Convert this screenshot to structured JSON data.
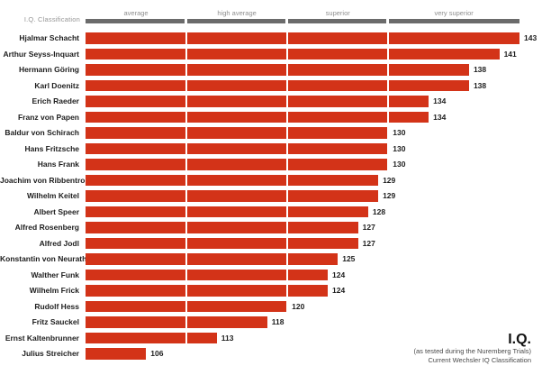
{
  "header": {
    "axis_label": "I.Q. Classification",
    "track_color": "#6b6b6b",
    "label_color": "#8f8f8f",
    "classifications": [
      {
        "label": "average",
        "from": 100,
        "to": 110
      },
      {
        "label": "high average",
        "from": 110,
        "to": 120
      },
      {
        "label": "superior",
        "from": 120,
        "to": 130
      },
      {
        "label": "very superior",
        "from": 130,
        "to": 143
      }
    ]
  },
  "chart_data": {
    "type": "bar",
    "orientation": "horizontal",
    "title": "I.Q.",
    "xlim": [
      100,
      143
    ],
    "gridline_boundaries": [
      110,
      120,
      130
    ],
    "legend": "none",
    "bar_color": "#d33318",
    "categories": [
      "Hjalmar Schacht",
      "Arthur Seyss-Inquart",
      "Hermann Göring",
      "Karl Doenitz",
      "Erich Raeder",
      "Franz von Papen",
      "Baldur von Schirach",
      "Hans Fritzsche",
      "Hans Frank",
      "Joachim von Ribbentrop",
      "Wilhelm Keitel",
      "Albert Speer",
      "Alfred Rosenberg",
      "Alfred Jodl",
      "Konstantin von Neurath",
      "Walther Funk",
      "Wilhelm Frick",
      "Rudolf Hess",
      "Fritz Sauckel",
      "Ernst Kaltenbrunner",
      "Julius Streicher"
    ],
    "values": [
      143,
      141,
      138,
      138,
      134,
      134,
      130,
      130,
      130,
      129,
      129,
      128,
      127,
      127,
      125,
      124,
      124,
      120,
      118,
      113,
      106
    ]
  },
  "footer": {
    "title": "I.Q.",
    "subtitle_line1": "(as tested during the Nuremberg Trials)",
    "subtitle_line2": "Current Wechsler IQ Classification"
  }
}
